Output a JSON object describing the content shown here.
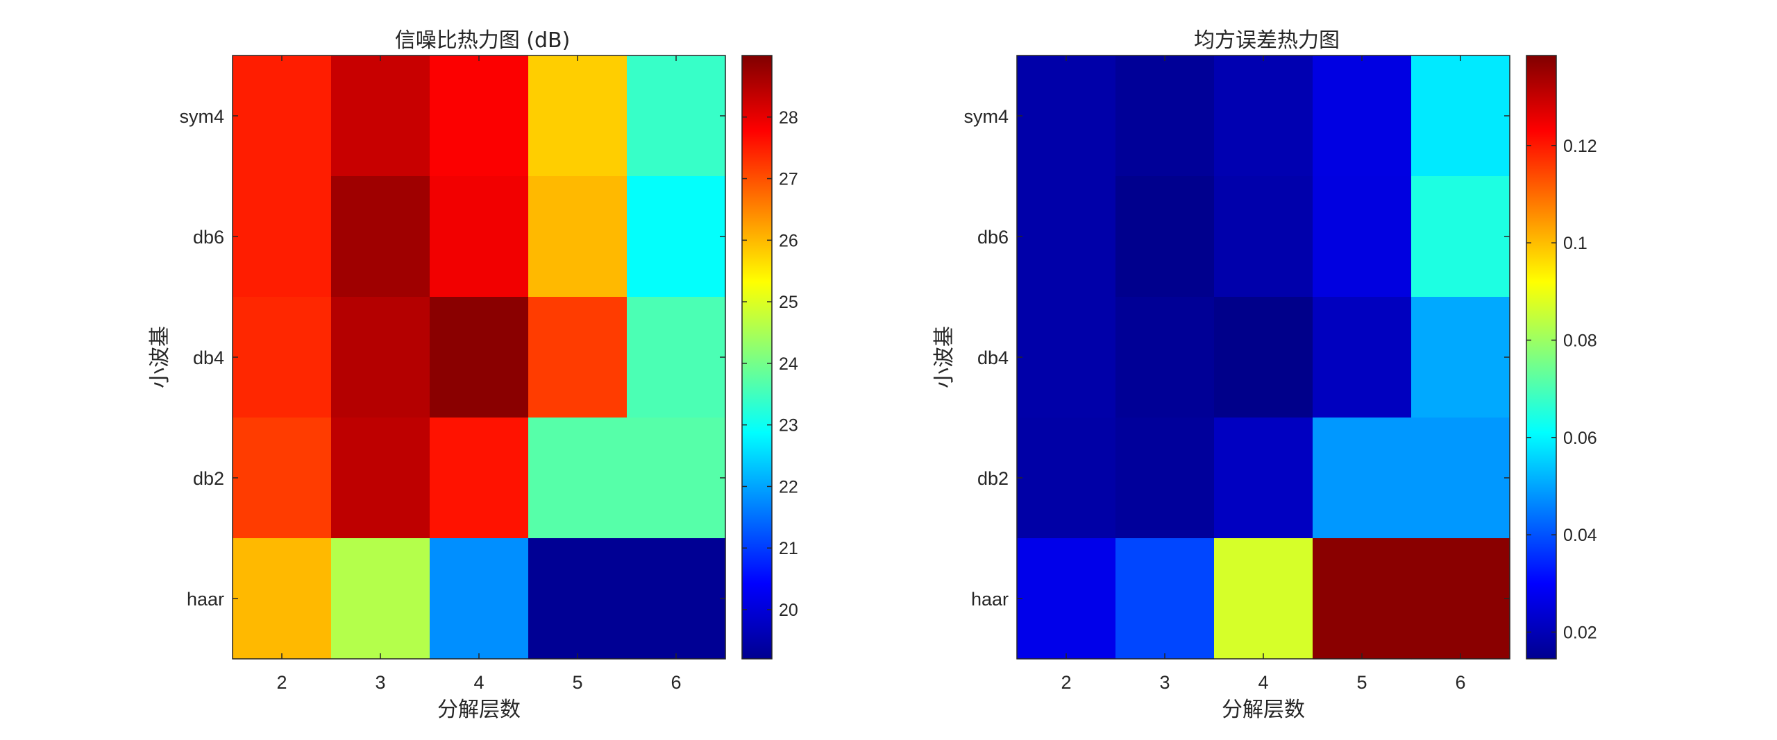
{
  "chart_data": [
    {
      "type": "heatmap",
      "title": "信噪比热力图 (dB)",
      "xlabel": "分解层数",
      "ylabel": "小波基",
      "x_categories": [
        "2",
        "3",
        "4",
        "5",
        "6"
      ],
      "y_categories": [
        "sym4",
        "db6",
        "db4",
        "db2",
        "haar"
      ],
      "values": [
        [
          27.5,
          28.3,
          27.8,
          25.8,
          23.4
        ],
        [
          27.5,
          28.7,
          27.9,
          26.0,
          22.9
        ],
        [
          27.4,
          28.5,
          28.9,
          27.2,
          23.6
        ],
        [
          27.2,
          28.4,
          27.6,
          23.7,
          23.7
        ],
        [
          26.0,
          24.6,
          21.8,
          19.4,
          19.4
        ]
      ],
      "colormap": "jet",
      "clim": [
        19.2,
        29.0
      ],
      "colorbar_ticks": [
        "20",
        "21",
        "22",
        "23",
        "24",
        "25",
        "26",
        "27",
        "28"
      ],
      "grid": false,
      "colorbar_position": "right"
    },
    {
      "type": "heatmap",
      "title": "均方误差热力图",
      "xlabel": "分解层数",
      "ylabel": "小波基",
      "x_categories": [
        "2",
        "3",
        "4",
        "5",
        "6"
      ],
      "y_categories": [
        "sym4",
        "db6",
        "db4",
        "db2",
        "haar"
      ],
      "values": [
        [
          0.0195,
          0.0175,
          0.0205,
          0.0265,
          0.0585
        ],
        [
          0.0195,
          0.0162,
          0.0198,
          0.0262,
          0.0645
        ],
        [
          0.0195,
          0.0172,
          0.0158,
          0.0222,
          0.0505
        ],
        [
          0.0192,
          0.0178,
          0.0225,
          0.0485,
          0.0485
        ],
        [
          0.0275,
          0.0385,
          0.087,
          0.1372,
          0.1372
        ]
      ],
      "colormap": "jet",
      "clim": [
        0.0145,
        0.1385
      ],
      "colorbar_ticks": [
        "0.02",
        "0.04",
        "0.06",
        "0.08",
        "0.1",
        "0.12"
      ],
      "grid": false,
      "colorbar_position": "right"
    }
  ]
}
